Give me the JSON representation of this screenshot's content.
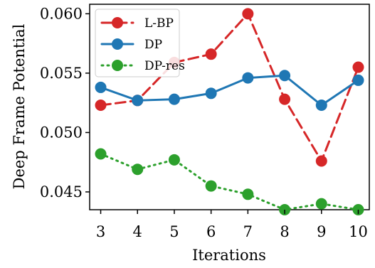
{
  "chart_data": {
    "type": "line",
    "title": "",
    "xlabel": "Iterations",
    "ylabel": "Deep Frame Potential",
    "x": [
      3,
      4,
      5,
      6,
      7,
      8,
      9,
      10
    ],
    "xlim": [
      2.7,
      10.3
    ],
    "ylim": [
      0.0435,
      0.0608
    ],
    "yticks": [
      "0.045",
      "0.050",
      "0.055",
      "0.060"
    ],
    "ytick_values": [
      0.045,
      0.05,
      0.055,
      0.06
    ],
    "grid": false,
    "legend_position": "top-left",
    "series": [
      {
        "name": "L-BP",
        "color": "#d62728",
        "linestyle": "dashed",
        "values": [
          0.0523,
          0.0527,
          0.0559,
          0.0566,
          0.06,
          0.0528,
          0.0476,
          0.0555
        ]
      },
      {
        "name": "DP",
        "color": "#1f77b4",
        "linestyle": "solid",
        "values": [
          0.0538,
          0.0527,
          0.0528,
          0.0533,
          0.0546,
          0.0548,
          0.0523,
          0.0544
        ]
      },
      {
        "name": "DP-res",
        "color": "#2ca02c",
        "linestyle": "dotted",
        "values": [
          0.0482,
          0.0469,
          0.0477,
          0.0455,
          0.0448,
          0.0435,
          0.044,
          0.0435
        ]
      }
    ]
  }
}
